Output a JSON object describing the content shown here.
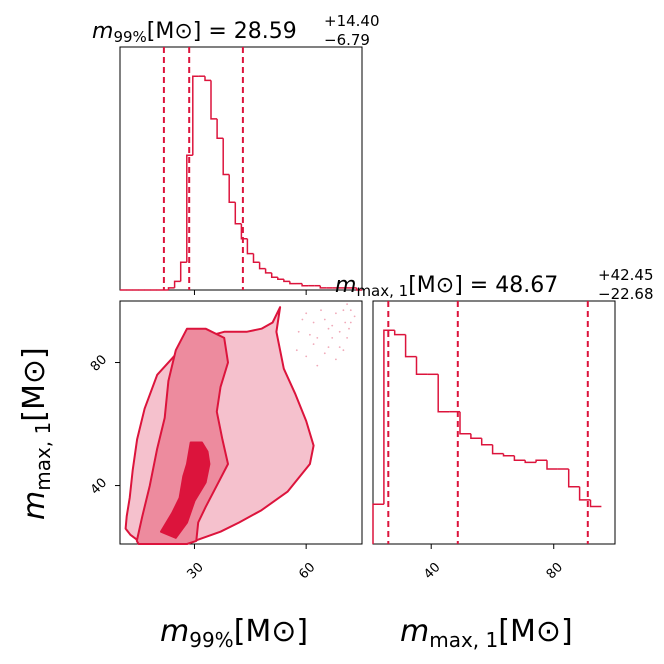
{
  "chart_data": {
    "type": "corner",
    "accent": "#dc143c",
    "params": [
      {
        "key": "m99",
        "label_main": "m",
        "label_sub": "99%",
        "unit": "[M⊙]",
        "title_value": "28.59",
        "err_plus": "+14.40",
        "err_minus": "−6.79",
        "range": [
          10,
          75
        ],
        "ticks": [
          {
            "v": 30,
            "label": "30"
          },
          {
            "v": 60,
            "label": "60"
          }
        ]
      },
      {
        "key": "mmax1",
        "label_main": "m",
        "label_sub": "max, 1",
        "unit": "[M⊙]",
        "title_value": "48.67",
        "err_plus": "+42.45",
        "err_minus": "−22.68",
        "range": [
          21,
          100
        ],
        "ticks": [
          {
            "v": 40,
            "label": "40"
          },
          {
            "v": 80,
            "label": "80"
          }
        ]
      }
    ],
    "hist_m99": {
      "edges_start": 10,
      "bin_width": 1.63,
      "counts": [
        0,
        0,
        0,
        0,
        0,
        0,
        0,
        0,
        1,
        4,
        13,
        63,
        100,
        100,
        98,
        80,
        71,
        54,
        41,
        31,
        24,
        17,
        13,
        10,
        8,
        6,
        5,
        4,
        3,
        3,
        2,
        2,
        2,
        1,
        1,
        1,
        1,
        1,
        1,
        0,
        1
      ],
      "quantiles": [
        21.8,
        28.59,
        43.0
      ]
    },
    "hist_mmax1": {
      "edges_start": 21,
      "bin_width": 3.55,
      "counts": [
        18,
        97,
        95,
        85,
        77,
        77,
        60,
        60,
        50,
        48,
        45,
        41,
        40,
        38,
        37,
        38,
        34,
        34,
        26,
        20,
        17
      ],
      "quantiles": [
        25.99,
        48.67,
        91.12
      ]
    },
    "contours_2d": [
      {
        "level": "outer",
        "color": "#f5c1cd",
        "x": [
          11.5,
          11.8,
          12.6,
          13.4,
          14.6,
          16.6,
          20,
          26,
          32,
          38,
          44,
          48,
          51,
          53,
          52,
          53,
          54,
          57,
          60,
          62,
          61,
          55,
          48,
          42,
          37,
          30,
          24,
          19,
          15,
          12.8,
          11.5
        ],
        "y": [
          26,
          30,
          36,
          45,
          55,
          65,
          76,
          84,
          88,
          90,
          90,
          91,
          93,
          98,
          90,
          84,
          78,
          70,
          61,
          53,
          47,
          38,
          32,
          28,
          25,
          22,
          21,
          21,
          22,
          24,
          26
        ]
      },
      {
        "level": "middle",
        "color": "#ed8b9e",
        "x": [
          14.5,
          16,
          18,
          20,
          22,
          23,
          25,
          28,
          33,
          38,
          39,
          37,
          36,
          37.5,
          39,
          36,
          33,
          31,
          30.5,
          28,
          24,
          22,
          20,
          17,
          15,
          14.5
        ],
        "y": [
          22,
          30,
          40,
          52,
          62,
          74,
          84,
          91,
          91,
          88,
          80,
          72,
          64,
          55,
          47,
          40,
          33,
          28,
          22,
          21,
          21,
          21,
          21,
          21,
          21,
          22
        ]
      },
      {
        "level": "inner",
        "color": "#dc143c",
        "x": [
          21,
          24,
          26,
          27,
          28,
          29,
          32,
          33.5,
          34,
          33,
          30,
          28,
          25,
          21
        ],
        "y": [
          25,
          31,
          36,
          43,
          47,
          54,
          54,
          51,
          47,
          41,
          35,
          28,
          23,
          25
        ]
      }
    ],
    "scatter_points": [
      [
        57.5,
        84
      ],
      [
        60,
        82
      ],
      [
        62,
        86
      ],
      [
        63,
        79
      ],
      [
        65,
        94
      ],
      [
        66,
        91
      ],
      [
        67,
        88
      ],
      [
        68,
        96
      ],
      [
        69,
        85
      ],
      [
        70,
        97
      ],
      [
        70.5,
        93
      ],
      [
        71,
        88
      ],
      [
        72,
        97
      ],
      [
        73,
        95
      ],
      [
        71.5,
        91
      ],
      [
        61,
        89
      ],
      [
        59,
        94
      ],
      [
        64,
        97
      ],
      [
        66,
        85
      ],
      [
        68,
        81
      ],
      [
        70,
        84
      ],
      [
        58,
        90
      ],
      [
        60,
        96
      ],
      [
        62,
        93
      ],
      [
        67,
        92
      ],
      [
        69,
        90
      ],
      [
        72,
        93
      ],
      [
        71,
        99
      ],
      [
        63,
        88
      ],
      [
        65,
        83
      ]
    ]
  }
}
